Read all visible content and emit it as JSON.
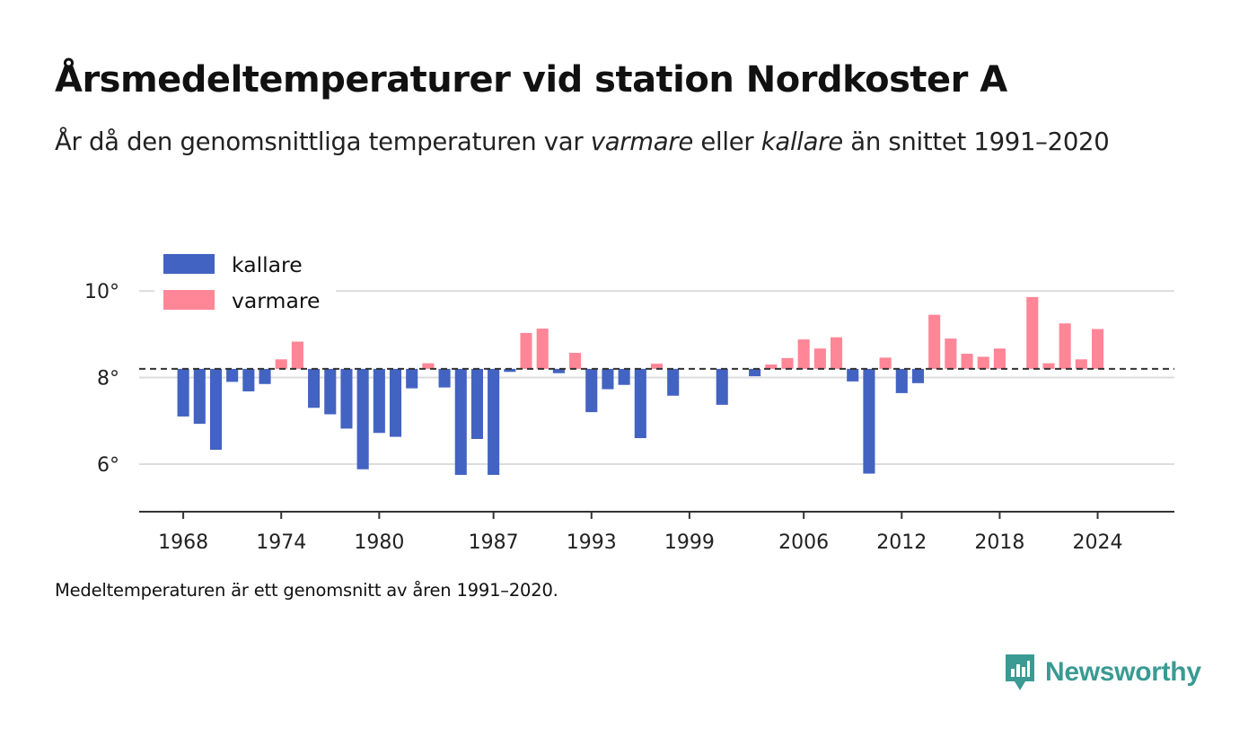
{
  "title": "Årsmedeltemperaturer vid station Nordkoster A",
  "subtitle": {
    "part1": "År då den genomsnittliga temperaturen var ",
    "warm_word": "varmare",
    "part2": " eller ",
    "cold_word": "kallare",
    "part3": " än snittet 1991–2020"
  },
  "note": "Medeltemperaturen är ett genomsnitt av åren 1991–2020.",
  "brand": "Newsworthy",
  "colors": {
    "cold": "#4363c2",
    "warm": "#ff8696",
    "grid": "#dddddd",
    "axis": "#333333",
    "brand": "#3a9a94"
  },
  "chart_data": {
    "type": "bar",
    "baseline": 8.2,
    "baseline_style": "dashed",
    "ylim": [
      4.9,
      10.5
    ],
    "y_ticks": [
      6,
      8,
      10
    ],
    "y_tick_labels": [
      "6°",
      "8°",
      "10°"
    ],
    "x_range": [
      1965.3,
      2028.7
    ],
    "x_ticks": [
      1968,
      1974,
      1980,
      1987,
      1993,
      1999,
      2006,
      2012,
      2018,
      2024
    ],
    "x_tick_labels": [
      "1968",
      "1974",
      "1980",
      "1987",
      "1993",
      "1999",
      "2006",
      "2012",
      "2018",
      "2024"
    ],
    "legend": [
      {
        "name": "kallare",
        "color": "#4363c2"
      },
      {
        "name": "varmare",
        "color": "#ff8696"
      }
    ],
    "legend_position": "top-left",
    "grid": true,
    "years": [
      1968,
      1969,
      1970,
      1971,
      1972,
      1973,
      1974,
      1975,
      1976,
      1977,
      1978,
      1979,
      1980,
      1981,
      1982,
      1983,
      1984,
      1985,
      1986,
      1987,
      1988,
      1989,
      1990,
      1991,
      1992,
      1993,
      1994,
      1995,
      1996,
      1997,
      1998,
      2001,
      2003,
      2004,
      2005,
      2006,
      2007,
      2008,
      2009,
      2010,
      2011,
      2012,
      2013,
      2014,
      2015,
      2016,
      2017,
      2018,
      2020,
      2021,
      2022,
      2023,
      2024
    ],
    "values": [
      7.1,
      6.93,
      6.33,
      7.9,
      7.68,
      7.85,
      8.42,
      8.83,
      7.3,
      7.15,
      6.82,
      5.88,
      6.72,
      6.63,
      7.75,
      8.33,
      7.77,
      5.75,
      6.58,
      5.75,
      8.13,
      9.03,
      9.13,
      8.1,
      8.57,
      7.2,
      7.73,
      7.83,
      6.6,
      8.32,
      7.58,
      7.37,
      8.03,
      8.3,
      8.45,
      8.88,
      8.67,
      8.93,
      7.91,
      5.78,
      8.46,
      7.64,
      7.87,
      9.45,
      8.9,
      8.55,
      8.48,
      8.67,
      9.86,
      8.33,
      9.25,
      8.42,
      9.12
    ]
  }
}
